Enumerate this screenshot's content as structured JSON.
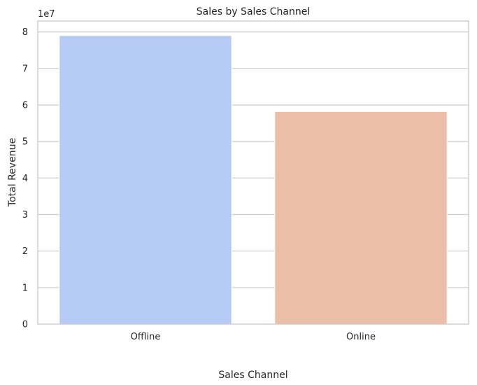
{
  "chart_data": {
    "type": "bar",
    "title": "Sales by Sales Channel",
    "xlabel": "Sales Channel",
    "ylabel": "Total Revenue",
    "categories": [
      "Offline",
      "Online"
    ],
    "values": [
      79000000,
      58200000
    ],
    "colors": [
      "#b5cbf5",
      "#ecbda7"
    ],
    "ylim": [
      0,
      83000000
    ],
    "yticks": [
      0,
      10000000,
      20000000,
      30000000,
      40000000,
      50000000,
      60000000,
      70000000,
      80000000
    ],
    "ytick_labels": [
      "0",
      "1",
      "2",
      "3",
      "4",
      "5",
      "6",
      "7",
      "8"
    ],
    "offset_label": "1e7",
    "grid": "y"
  }
}
